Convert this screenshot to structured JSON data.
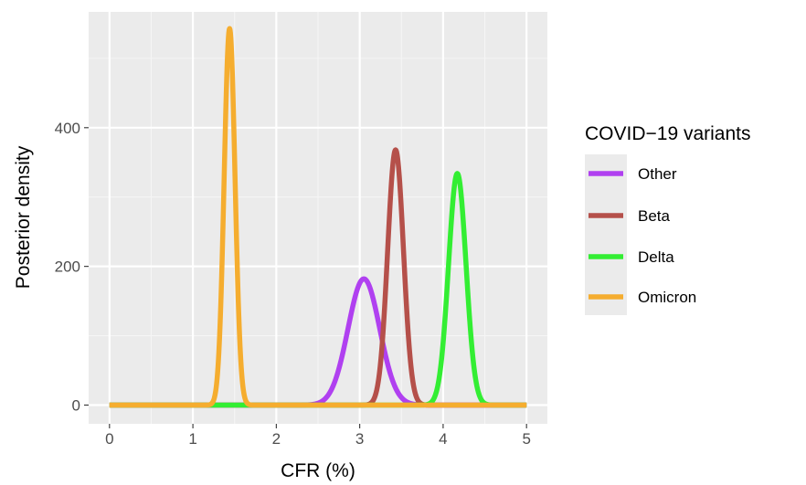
{
  "chart_data": {
    "type": "line",
    "xlabel": "CFR (%)",
    "ylabel": "Posterior density",
    "xlim": [
      -0.25,
      5.25
    ],
    "ylim": [
      -27,
      567
    ],
    "x_ticks": [
      0,
      1,
      2,
      3,
      4,
      5
    ],
    "y_ticks": [
      0,
      200,
      400
    ],
    "grid": true,
    "legend": {
      "title": "COVID−19 variants",
      "placement": "right"
    },
    "series": [
      {
        "name": "Other",
        "color": "#b040f0",
        "mean": 3.05,
        "peak": 182,
        "sd": 0.19
      },
      {
        "name": "Beta",
        "color": "#b5504a",
        "mean": 3.43,
        "peak": 368,
        "sd": 0.095
      },
      {
        "name": "Delta",
        "color": "#33ee33",
        "mean": 4.17,
        "peak": 334,
        "sd": 0.105
      },
      {
        "name": "Omicron",
        "color": "#f5ad2f",
        "mean": 1.44,
        "peak": 543,
        "sd": 0.065
      }
    ]
  }
}
